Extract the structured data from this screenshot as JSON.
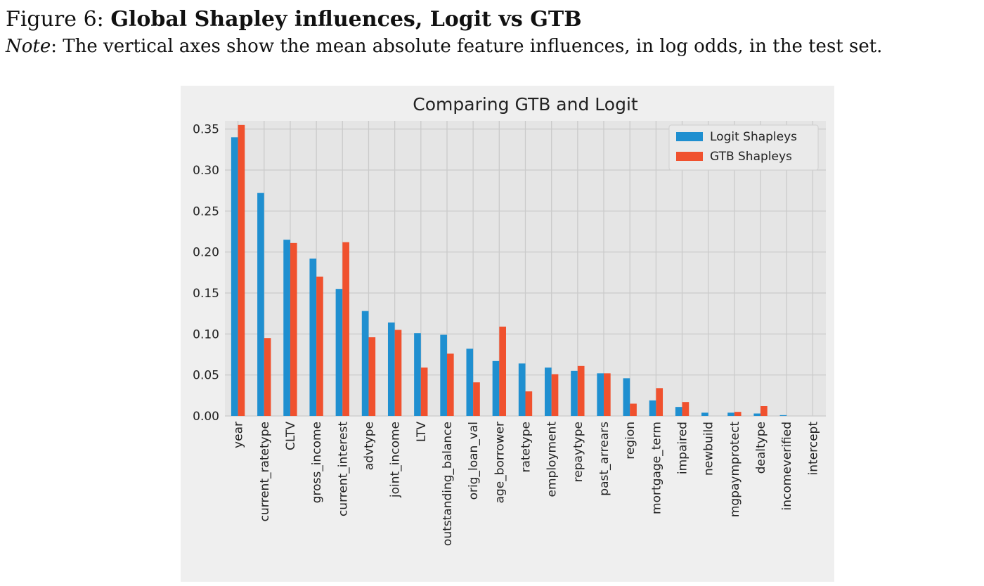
{
  "caption": {
    "figure_label": "Figure 6:",
    "figure_title": "Global Shapley influences, Logit vs GTB",
    "note_label": "Note",
    "note_text": ": The vertical axes show the mean absolute feature influences, in log odds, in the test set."
  },
  "colors": {
    "logit": "#1f8fd0",
    "gtb": "#f0512e",
    "plot_background": "#e5e5e5",
    "figure_background": "#efefef",
    "grid": "#cbcbcb"
  },
  "chart_data": {
    "type": "bar",
    "title": "Comparing GTB and Logit",
    "xlabel": "",
    "ylabel": "",
    "ylim": [
      0,
      0.36
    ],
    "yticks": [
      0.0,
      0.05,
      0.1,
      0.15,
      0.2,
      0.25,
      0.3,
      0.35
    ],
    "ytick_labels": [
      "0.00",
      "0.05",
      "0.10",
      "0.15",
      "0.20",
      "0.25",
      "0.30",
      "0.35"
    ],
    "grid": true,
    "legend": "top-right",
    "categories": [
      "year",
      "current_ratetype",
      "CLTV",
      "gross_income",
      "current_interest",
      "advtype",
      "joint_income",
      "LTV",
      "outstanding_balance",
      "orig_loan_val",
      "age_borrower",
      "ratetype",
      "employment",
      "repaytype",
      "past_arrears",
      "region",
      "mortgage_term",
      "impaired",
      "newbuild",
      "mgpaymprotect",
      "dealtype",
      "incomeverified",
      "intercept"
    ],
    "series": [
      {
        "name": "Logit Shapleys",
        "values": [
          0.34,
          0.272,
          0.215,
          0.192,
          0.155,
          0.128,
          0.114,
          0.101,
          0.099,
          0.082,
          0.067,
          0.064,
          0.059,
          0.055,
          0.052,
          0.046,
          0.019,
          0.011,
          0.004,
          0.004,
          0.003,
          0.001,
          0.0
        ]
      },
      {
        "name": "GTB Shapleys",
        "values": [
          0.355,
          0.095,
          0.211,
          0.17,
          0.212,
          0.096,
          0.105,
          0.059,
          0.076,
          0.041,
          0.109,
          0.03,
          0.051,
          0.061,
          0.052,
          0.015,
          0.034,
          0.017,
          0.0,
          0.005,
          0.012,
          0.0,
          0.0
        ]
      }
    ]
  }
}
